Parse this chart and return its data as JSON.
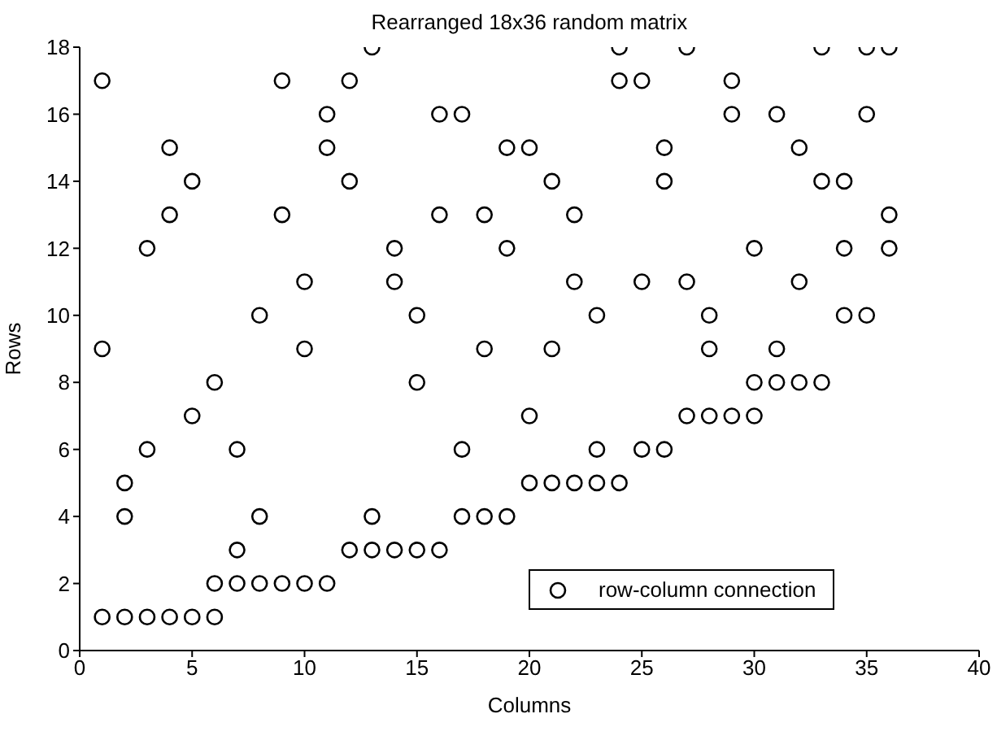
{
  "chart_data": {
    "type": "scatter",
    "title": "Rearranged 18x36 random matrix",
    "xlabel": "Columns",
    "ylabel": "Rows",
    "xlim": [
      0,
      40
    ],
    "xticks": [
      0,
      5,
      10,
      15,
      20,
      25,
      30,
      35,
      40
    ],
    "ylim": [
      0,
      18
    ],
    "yticks": [
      0,
      2,
      4,
      6,
      8,
      10,
      12,
      14,
      16,
      18
    ],
    "grid": false,
    "legend": "bottom right",
    "marker": "circle",
    "series": [
      {
        "name": "row-column connection",
        "color": "#000000",
        "x": [
          1,
          1,
          1,
          2,
          2,
          2,
          3,
          3,
          3,
          4,
          4,
          4,
          5,
          5,
          5,
          6,
          6,
          6,
          7,
          7,
          7,
          8,
          8,
          8,
          9,
          9,
          9,
          10,
          10,
          10,
          11,
          11,
          11,
          12,
          12,
          12,
          13,
          13,
          13,
          14,
          14,
          14,
          15,
          15,
          15,
          16,
          16,
          16,
          17,
          17,
          17,
          18,
          18,
          18,
          19,
          19,
          19,
          20,
          20,
          20,
          21,
          21,
          21,
          22,
          22,
          22,
          23,
          23,
          23,
          24,
          24,
          24,
          25,
          25,
          25,
          26,
          26,
          26,
          27,
          27,
          27,
          28,
          28,
          28,
          29,
          29,
          29,
          30,
          30,
          30,
          31,
          31,
          31,
          32,
          32,
          32,
          33,
          33,
          33,
          34,
          34,
          34,
          35,
          35,
          35,
          36,
          36,
          36
        ],
        "values": [
          1,
          9,
          17,
          1,
          4,
          5,
          1,
          6,
          12,
          1,
          13,
          15,
          1,
          7,
          14,
          1,
          2,
          8,
          2,
          3,
          6,
          2,
          4,
          10,
          2,
          13,
          17,
          2,
          9,
          11,
          2,
          15,
          16,
          3,
          14,
          17,
          3,
          4,
          18,
          3,
          11,
          12,
          3,
          8,
          10,
          3,
          13,
          16,
          4,
          6,
          16,
          4,
          9,
          13,
          4,
          12,
          15,
          5,
          7,
          15,
          5,
          9,
          14,
          5,
          11,
          13,
          5,
          6,
          10,
          5,
          17,
          18,
          6,
          11,
          17,
          6,
          14,
          15,
          7,
          11,
          18,
          7,
          9,
          10,
          7,
          16,
          17,
          7,
          8,
          12,
          8,
          9,
          16,
          8,
          11,
          15,
          8,
          14,
          18,
          10,
          12,
          14,
          10,
          16,
          18,
          12,
          13,
          18
        ]
      }
    ]
  }
}
